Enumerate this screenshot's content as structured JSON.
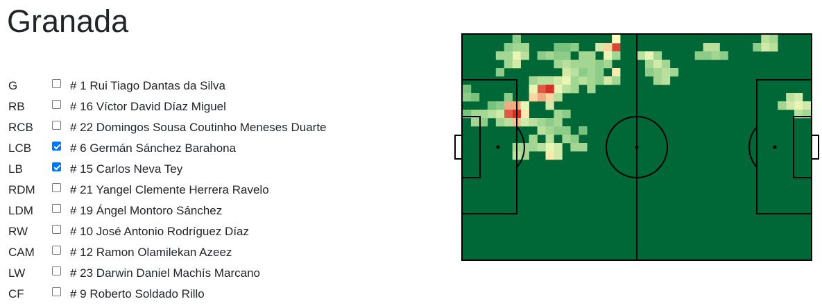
{
  "team": {
    "name": "Granada"
  },
  "players": [
    {
      "position": "G",
      "label": "# 1 Rui Tiago Dantas da Silva",
      "checked": false
    },
    {
      "position": "RB",
      "label": "# 16 Víctor David Díaz Miguel",
      "checked": false
    },
    {
      "position": "RCB",
      "label": "# 22 Domingos Sousa Coutinho Meneses Duarte",
      "checked": false
    },
    {
      "position": "LCB",
      "label": "# 6 Germán Sánchez Barahona",
      "checked": true
    },
    {
      "position": "LB",
      "label": "# 15 Carlos Neva Tey",
      "checked": true
    },
    {
      "position": "RDM",
      "label": "# 21 Yangel Clemente Herrera Ravelo",
      "checked": false
    },
    {
      "position": "LDM",
      "label": "# 19 Ángel Montoro Sánchez",
      "checked": false
    },
    {
      "position": "RW",
      "label": "# 10 José Antonio Rodríguez Díaz",
      "checked": false
    },
    {
      "position": "CAM",
      "label": "# 12 Ramon Olamilekan Azeez",
      "checked": false
    },
    {
      "position": "LW",
      "label": "# 23 Darwin Daniel Machís Marcano",
      "checked": false
    },
    {
      "position": "CF",
      "label": "# 9 Roberto Soldado Rillo",
      "checked": false
    }
  ],
  "heatmap": {
    "colors": {
      "pitch": "#006837",
      "lines": "#000000",
      "low": "#1a9850",
      "mid": "#ffffbf",
      "high": "#d73027"
    },
    "grid": {
      "cols": 42,
      "rows": 27
    },
    "cells": [
      [
        18,
        1,
        0.95
      ],
      [
        17,
        1,
        0.6
      ],
      [
        18,
        0,
        0.5
      ],
      [
        16,
        1,
        0.4
      ],
      [
        17,
        2,
        0.45
      ],
      [
        15,
        2,
        0.3
      ],
      [
        18,
        2,
        0.3
      ],
      [
        6,
        2,
        0.45
      ],
      [
        6,
        1,
        0.3
      ],
      [
        7,
        2,
        0.35
      ],
      [
        5,
        3,
        0.3
      ],
      [
        6,
        3,
        0.4
      ],
      [
        5,
        2,
        0.3
      ],
      [
        4,
        4,
        0.25
      ],
      [
        4,
        2,
        0.3
      ],
      [
        10,
        2,
        0.3
      ],
      [
        11,
        2,
        0.25
      ],
      [
        12,
        3,
        0.35
      ],
      [
        11,
        3,
        0.3
      ],
      [
        13,
        4,
        0.35
      ],
      [
        12,
        4,
        0.4
      ],
      [
        14,
        3,
        0.3
      ],
      [
        14,
        5,
        0.35
      ],
      [
        13,
        5,
        0.3
      ],
      [
        15,
        4,
        0.3
      ],
      [
        16,
        4,
        0.25
      ],
      [
        18,
        4,
        0.55
      ],
      [
        17,
        5,
        0.4
      ],
      [
        18,
        5,
        0.3
      ],
      [
        16,
        5,
        0.25
      ],
      [
        15,
        6,
        0.3
      ],
      [
        10,
        5,
        0.35
      ],
      [
        11,
        5,
        0.4
      ],
      [
        12,
        5,
        0.45
      ],
      [
        11,
        6,
        0.45
      ],
      [
        12,
        6,
        0.35
      ],
      [
        13,
        6,
        0.3
      ],
      [
        10,
        7,
        0.35
      ],
      [
        9,
        6,
        0.3
      ],
      [
        10,
        8,
        0.4
      ],
      [
        8,
        5,
        0.3
      ],
      [
        9,
        5,
        0.35
      ],
      [
        10,
        6,
        1.0
      ],
      [
        9,
        6,
        0.9
      ],
      [
        9,
        7,
        0.7
      ],
      [
        10,
        7,
        0.6
      ],
      [
        8,
        7,
        0.6
      ],
      [
        8,
        6,
        0.45
      ],
      [
        11,
        7,
        0.35
      ],
      [
        5,
        8,
        0.3
      ],
      [
        6,
        8,
        0.4
      ],
      [
        7,
        8,
        0.45
      ],
      [
        7,
        9,
        0.55
      ],
      [
        6,
        9,
        0.6
      ],
      [
        5,
        9,
        0.5
      ],
      [
        4,
        9,
        0.4
      ],
      [
        3,
        9,
        0.35
      ],
      [
        2,
        9,
        0.3
      ],
      [
        1,
        9,
        0.3
      ],
      [
        0,
        9,
        0.2
      ],
      [
        5,
        10,
        0.35
      ],
      [
        6,
        10,
        0.45
      ],
      [
        4,
        10,
        0.3
      ],
      [
        2,
        10,
        0.25
      ],
      [
        1,
        10,
        0.3
      ],
      [
        7,
        10,
        0.4
      ],
      [
        8,
        10,
        0.35
      ],
      [
        9,
        10,
        0.3
      ],
      [
        10,
        10,
        0.25
      ],
      [
        11,
        9,
        0.3
      ],
      [
        12,
        9,
        0.25
      ],
      [
        6,
        8,
        0.35
      ],
      [
        5,
        7,
        0.25
      ],
      [
        4,
        8,
        0.25
      ],
      [
        3,
        8,
        0.2
      ],
      [
        0,
        6,
        0.2
      ],
      [
        0,
        7,
        0.25
      ],
      [
        1,
        7,
        0.2
      ],
      [
        5,
        9,
        0.9
      ],
      [
        6,
        9,
        1.0
      ],
      [
        6,
        8,
        0.7
      ],
      [
        5,
        8,
        0.7
      ],
      [
        6,
        10,
        0.65
      ],
      [
        9,
        11,
        0.35
      ],
      [
        10,
        11,
        0.3
      ],
      [
        8,
        12,
        0.3
      ],
      [
        7,
        13,
        0.3
      ],
      [
        8,
        13,
        0.3
      ],
      [
        10,
        12,
        0.35
      ],
      [
        11,
        11,
        0.25
      ],
      [
        11,
        10,
        0.3
      ],
      [
        12,
        11,
        0.25
      ],
      [
        10,
        13,
        0.45
      ],
      [
        11,
        13,
        0.4
      ],
      [
        10,
        14,
        0.55
      ],
      [
        11,
        14,
        0.4
      ],
      [
        9,
        13,
        0.35
      ],
      [
        12,
        12,
        0.3
      ],
      [
        13,
        12,
        0.25
      ],
      [
        13,
        13,
        0.3
      ],
      [
        14,
        13,
        0.3
      ],
      [
        14,
        11,
        0.2
      ],
      [
        6,
        13,
        0.3
      ],
      [
        6,
        14,
        0.35
      ],
      [
        7,
        14,
        0.3
      ],
      [
        14,
        5,
        0.25
      ],
      [
        15,
        5,
        0.3
      ],
      [
        13,
        3,
        0.3
      ],
      [
        14,
        2,
        0.3
      ],
      [
        12,
        2,
        0.25
      ],
      [
        17,
        3,
        0.3
      ],
      [
        16,
        3,
        0.25
      ],
      [
        15,
        3,
        0.3
      ],
      [
        14,
        4,
        0.25
      ],
      [
        13,
        1,
        0.25
      ],
      [
        12,
        1,
        0.2
      ],
      [
        11,
        1,
        0.2
      ],
      [
        9,
        2,
        0.25
      ],
      [
        7,
        1,
        0.3
      ],
      [
        6,
        0,
        0.25
      ],
      [
        5,
        1,
        0.25
      ],
      [
        21,
        2,
        0.35
      ],
      [
        22,
        2,
        0.45
      ],
      [
        23,
        2,
        0.3
      ],
      [
        22,
        3,
        0.3
      ],
      [
        23,
        3,
        0.4
      ],
      [
        24,
        4,
        0.35
      ],
      [
        23,
        4,
        0.3
      ],
      [
        24,
        3,
        0.3
      ],
      [
        23,
        5,
        0.3
      ],
      [
        24,
        5,
        0.35
      ],
      [
        25,
        4,
        0.3
      ],
      [
        22,
        4,
        0.25
      ],
      [
        29,
        1,
        0.35
      ],
      [
        30,
        1,
        0.35
      ],
      [
        29,
        2,
        0.25
      ],
      [
        30,
        2,
        0.3
      ],
      [
        31,
        2,
        0.25
      ],
      [
        28,
        2,
        0.25
      ],
      [
        36,
        0,
        0.35
      ],
      [
        37,
        0,
        0.3
      ],
      [
        36,
        1,
        0.4
      ],
      [
        37,
        1,
        0.35
      ],
      [
        35,
        1,
        0.25
      ],
      [
        39,
        7,
        0.35
      ],
      [
        40,
        7,
        0.4
      ],
      [
        39,
        8,
        0.4
      ],
      [
        40,
        8,
        0.45
      ],
      [
        41,
        8,
        0.4
      ],
      [
        40,
        9,
        0.35
      ],
      [
        41,
        9,
        0.3
      ],
      [
        38,
        8,
        0.3
      ]
    ]
  }
}
